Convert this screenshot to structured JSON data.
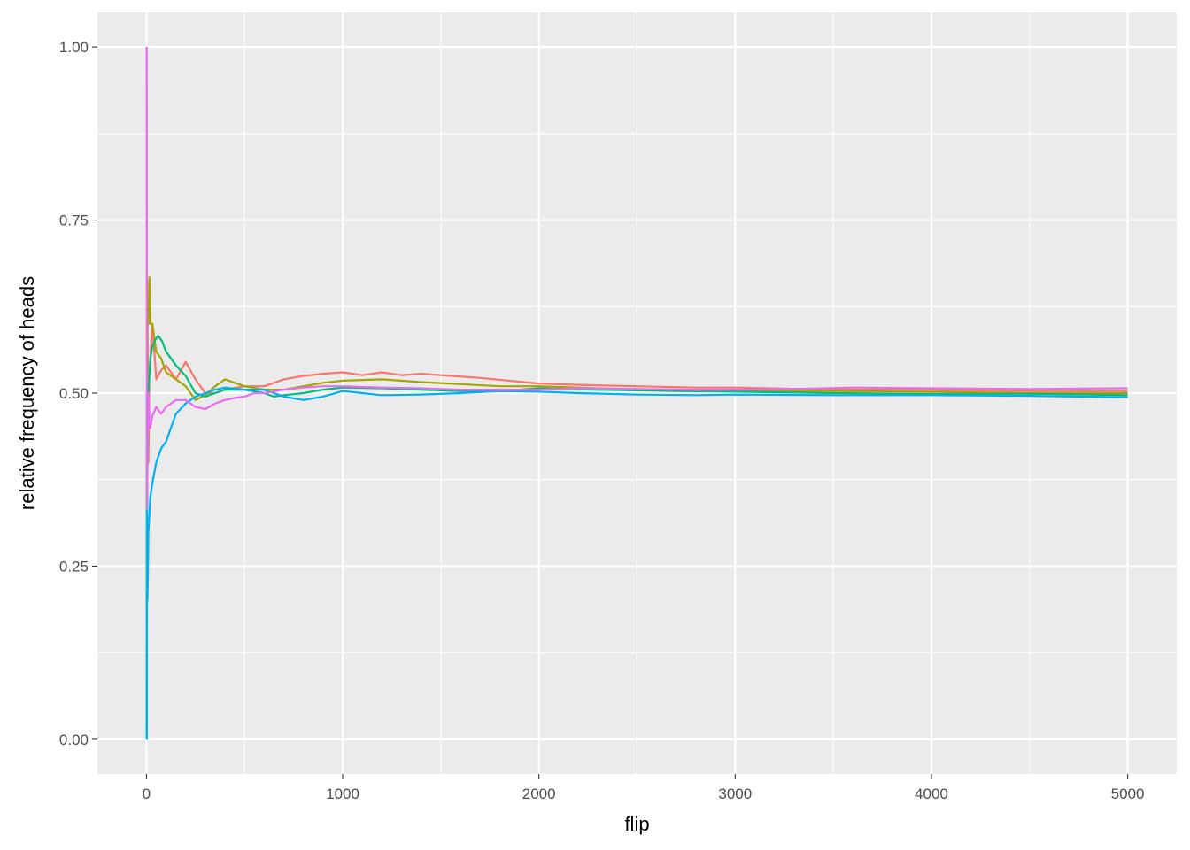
{
  "chart_data": {
    "type": "line",
    "xlabel": "flip",
    "ylabel": "relative frequency of heads",
    "xlim": [
      -250,
      5250
    ],
    "ylim": [
      -0.05,
      1.05
    ],
    "x_ticks": [
      0,
      1000,
      2000,
      3000,
      4000,
      5000
    ],
    "x_tick_labels": [
      "0",
      "1000",
      "2000",
      "3000",
      "4000",
      "5000"
    ],
    "y_ticks": [
      0,
      0.25,
      0.5,
      0.75,
      1
    ],
    "y_tick_labels": [
      "0.00",
      "0.25",
      "0.50",
      "0.75",
      "1.00"
    ],
    "grid": true,
    "legend": "none",
    "background": "#ebebeb",
    "series": [
      {
        "color": "#f8766d",
        "points": [
          [
            1,
            1.0
          ],
          [
            2,
            0.5
          ],
          [
            3,
            0.667
          ],
          [
            5,
            0.6
          ],
          [
            8,
            0.5
          ],
          [
            10,
            0.4
          ],
          [
            15,
            0.533
          ],
          [
            20,
            0.55
          ],
          [
            30,
            0.6
          ],
          [
            50,
            0.52
          ],
          [
            75,
            0.533
          ],
          [
            100,
            0.54
          ],
          [
            150,
            0.52
          ],
          [
            200,
            0.545
          ],
          [
            250,
            0.52
          ],
          [
            300,
            0.5
          ],
          [
            350,
            0.5
          ],
          [
            400,
            0.505
          ],
          [
            500,
            0.51
          ],
          [
            600,
            0.51
          ],
          [
            700,
            0.52
          ],
          [
            800,
            0.525
          ],
          [
            900,
            0.528
          ],
          [
            1000,
            0.53
          ],
          [
            1100,
            0.526
          ],
          [
            1200,
            0.53
          ],
          [
            1300,
            0.526
          ],
          [
            1400,
            0.528
          ],
          [
            1500,
            0.526
          ],
          [
            1700,
            0.522
          ],
          [
            2000,
            0.514
          ],
          [
            2200,
            0.512
          ],
          [
            2500,
            0.51
          ],
          [
            2800,
            0.508
          ],
          [
            3000,
            0.508
          ],
          [
            3500,
            0.505
          ],
          [
            4000,
            0.505
          ],
          [
            4500,
            0.503
          ],
          [
            5000,
            0.503
          ]
        ]
      },
      {
        "color": "#a3a500",
        "points": [
          [
            1,
            0.0
          ],
          [
            2,
            0.5
          ],
          [
            3,
            0.333
          ],
          [
            5,
            0.6
          ],
          [
            10,
            0.6
          ],
          [
            15,
            0.667
          ],
          [
            20,
            0.6
          ],
          [
            30,
            0.6
          ],
          [
            50,
            0.56
          ],
          [
            75,
            0.55
          ],
          [
            100,
            0.53
          ],
          [
            150,
            0.52
          ],
          [
            200,
            0.51
          ],
          [
            250,
            0.49
          ],
          [
            300,
            0.497
          ],
          [
            350,
            0.51
          ],
          [
            400,
            0.52
          ],
          [
            450,
            0.515
          ],
          [
            500,
            0.51
          ],
          [
            600,
            0.505
          ],
          [
            700,
            0.505
          ],
          [
            800,
            0.51
          ],
          [
            900,
            0.515
          ],
          [
            1000,
            0.518
          ],
          [
            1200,
            0.52
          ],
          [
            1400,
            0.516
          ],
          [
            1600,
            0.513
          ],
          [
            1800,
            0.51
          ],
          [
            2000,
            0.51
          ],
          [
            2300,
            0.507
          ],
          [
            2600,
            0.505
          ],
          [
            3000,
            0.503
          ],
          [
            3500,
            0.503
          ],
          [
            4000,
            0.502
          ],
          [
            4500,
            0.5
          ],
          [
            5000,
            0.5
          ]
        ]
      },
      {
        "color": "#00bf7d",
        "points": [
          [
            1,
            0.0
          ],
          [
            2,
            0.5
          ],
          [
            3,
            0.333
          ],
          [
            5,
            0.4
          ],
          [
            10,
            0.5
          ],
          [
            20,
            0.55
          ],
          [
            30,
            0.567
          ],
          [
            40,
            0.575
          ],
          [
            60,
            0.583
          ],
          [
            80,
            0.575
          ],
          [
            100,
            0.56
          ],
          [
            150,
            0.54
          ],
          [
            200,
            0.525
          ],
          [
            250,
            0.5
          ],
          [
            300,
            0.495
          ],
          [
            350,
            0.5
          ],
          [
            400,
            0.505
          ],
          [
            500,
            0.505
          ],
          [
            600,
            0.5
          ],
          [
            650,
            0.495
          ],
          [
            700,
            0.497
          ],
          [
            800,
            0.5
          ],
          [
            900,
            0.505
          ],
          [
            1000,
            0.508
          ],
          [
            1200,
            0.507
          ],
          [
            1400,
            0.505
          ],
          [
            1600,
            0.503
          ],
          [
            1800,
            0.503
          ],
          [
            2000,
            0.507
          ],
          [
            2300,
            0.505
          ],
          [
            2700,
            0.503
          ],
          [
            3000,
            0.502
          ],
          [
            3500,
            0.5
          ],
          [
            4000,
            0.499
          ],
          [
            4500,
            0.499
          ],
          [
            5000,
            0.497
          ]
        ]
      },
      {
        "color": "#00b0f6",
        "points": [
          [
            1,
            0.0
          ],
          [
            2,
            0.0
          ],
          [
            3,
            0.333
          ],
          [
            5,
            0.2
          ],
          [
            8,
            0.25
          ],
          [
            10,
            0.3
          ],
          [
            20,
            0.35
          ],
          [
            30,
            0.37
          ],
          [
            50,
            0.4
          ],
          [
            75,
            0.42
          ],
          [
            100,
            0.43
          ],
          [
            125,
            0.45
          ],
          [
            150,
            0.47
          ],
          [
            200,
            0.485
          ],
          [
            250,
            0.495
          ],
          [
            300,
            0.5
          ],
          [
            350,
            0.505
          ],
          [
            400,
            0.508
          ],
          [
            500,
            0.505
          ],
          [
            600,
            0.505
          ],
          [
            700,
            0.495
          ],
          [
            800,
            0.49
          ],
          [
            900,
            0.495
          ],
          [
            1000,
            0.503
          ],
          [
            1100,
            0.5
          ],
          [
            1200,
            0.497
          ],
          [
            1400,
            0.498
          ],
          [
            1600,
            0.5
          ],
          [
            1800,
            0.503
          ],
          [
            2000,
            0.502
          ],
          [
            2200,
            0.5
          ],
          [
            2500,
            0.498
          ],
          [
            2800,
            0.497
          ],
          [
            3000,
            0.498
          ],
          [
            3500,
            0.497
          ],
          [
            4000,
            0.497
          ],
          [
            4500,
            0.496
          ],
          [
            5000,
            0.494
          ]
        ]
      },
      {
        "color": "#e76bf3",
        "points": [
          [
            1,
            1.0
          ],
          [
            2,
            0.5
          ],
          [
            3,
            0.333
          ],
          [
            5,
            0.4
          ],
          [
            10,
            0.5
          ],
          [
            15,
            0.467
          ],
          [
            20,
            0.45
          ],
          [
            30,
            0.467
          ],
          [
            50,
            0.48
          ],
          [
            75,
            0.47
          ],
          [
            100,
            0.48
          ],
          [
            150,
            0.49
          ],
          [
            200,
            0.49
          ],
          [
            250,
            0.48
          ],
          [
            300,
            0.477
          ],
          [
            350,
            0.485
          ],
          [
            400,
            0.49
          ],
          [
            450,
            0.493
          ],
          [
            500,
            0.495
          ],
          [
            550,
            0.5
          ],
          [
            600,
            0.5
          ],
          [
            700,
            0.505
          ],
          [
            800,
            0.508
          ],
          [
            900,
            0.51
          ],
          [
            1000,
            0.51
          ],
          [
            1200,
            0.508
          ],
          [
            1400,
            0.507
          ],
          [
            1600,
            0.505
          ],
          [
            1800,
            0.505
          ],
          [
            2000,
            0.505
          ],
          [
            2200,
            0.507
          ],
          [
            2500,
            0.506
          ],
          [
            2800,
            0.505
          ],
          [
            3000,
            0.505
          ],
          [
            3300,
            0.506
          ],
          [
            3600,
            0.508
          ],
          [
            4000,
            0.507
          ],
          [
            4500,
            0.506
          ],
          [
            5000,
            0.507
          ]
        ]
      }
    ]
  }
}
